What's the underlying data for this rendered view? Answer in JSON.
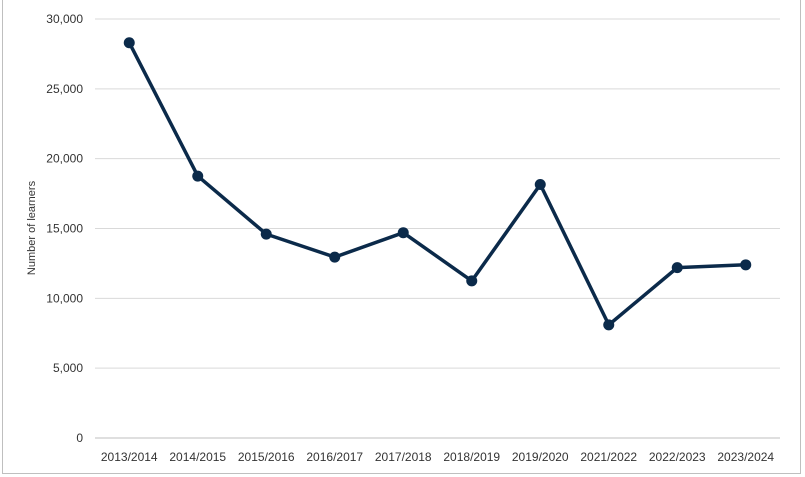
{
  "chart_data": {
    "type": "line",
    "title": "",
    "xlabel": "",
    "ylabel": "Number of learners",
    "categories": [
      "2013/2014",
      "2014/2015",
      "2015/2016",
      "2016/2017",
      "2017/2018",
      "2018/2019",
      "2019/2020",
      "2021/2022",
      "2022/2023",
      "2023/2024"
    ],
    "series": [
      {
        "values": [
          28300,
          18750,
          14600,
          12950,
          14700,
          11250,
          18150,
          8100,
          12200,
          12400
        ]
      }
    ],
    "ylim": [
      0,
      30000
    ],
    "yticks": [
      "0",
      "5,000",
      "10,000",
      "15,000",
      "20,000",
      "25,000",
      "30,000"
    ],
    "grid": true,
    "legend": "none",
    "colors": {
      "line": "#0b2a4a",
      "grid": "#d9d9d9",
      "axis": "#bfbfbf"
    }
  }
}
